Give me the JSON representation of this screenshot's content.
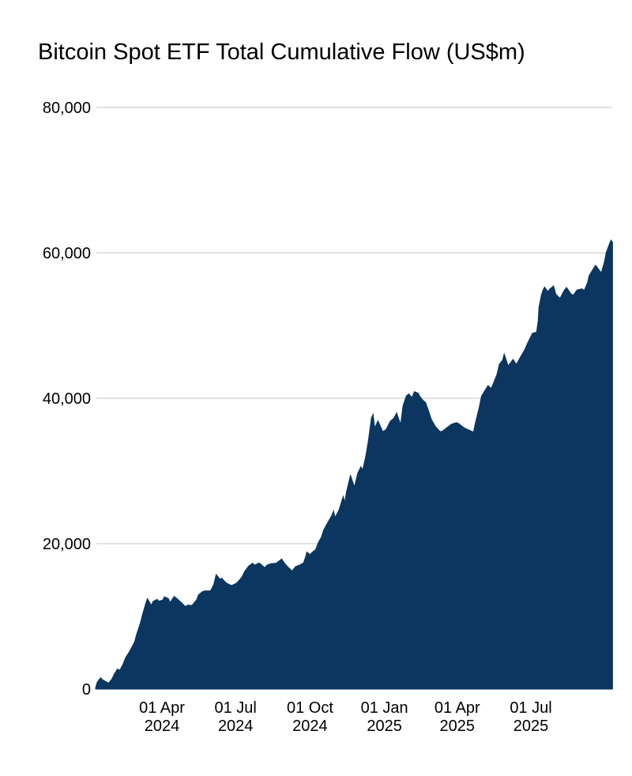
{
  "chart_data": {
    "type": "area",
    "title": "Bitcoin Spot ETF Total Cumulative Flow (US$m)",
    "xlabel": "",
    "ylabel": "",
    "ylim": [
      0,
      80000
    ],
    "grid": "horizontal-only",
    "legend": "none",
    "colors": {
      "fill": "#0a3660",
      "grid": "#d9d9d9",
      "text": "#000000",
      "background": "#ffffff"
    },
    "y_ticks": [
      {
        "value": 0,
        "label": "0"
      },
      {
        "value": 20000,
        "label": "20,000"
      },
      {
        "value": 40000,
        "label": "40,000"
      },
      {
        "value": 60000,
        "label": "60,000"
      },
      {
        "value": 80000,
        "label": "80,000"
      }
    ],
    "x_ticks": [
      {
        "date": "2024-04-01",
        "line1": "01 Apr",
        "line2": "2024"
      },
      {
        "date": "2024-07-01",
        "line1": "01 Jul",
        "line2": "2024"
      },
      {
        "date": "2024-10-01",
        "line1": "01 Oct",
        "line2": "2024"
      },
      {
        "date": "2025-01-01",
        "line1": "01 Jan",
        "line2": "2025"
      },
      {
        "date": "2025-04-01",
        "line1": "01 Apr",
        "line2": "2025"
      },
      {
        "date": "2025-07-01",
        "line1": "01 Jul",
        "line2": "2025"
      }
    ],
    "series": [
      {
        "name": "Total cumulative flow",
        "points": [
          [
            "2024-01-10",
            200
          ],
          [
            "2024-01-12",
            950
          ],
          [
            "2024-01-16",
            1550
          ],
          [
            "2024-01-19",
            1250
          ],
          [
            "2024-01-24",
            950
          ],
          [
            "2024-01-26",
            800
          ],
          [
            "2024-01-30",
            1350
          ],
          [
            "2024-02-02",
            2050
          ],
          [
            "2024-02-06",
            2750
          ],
          [
            "2024-02-09",
            2600
          ],
          [
            "2024-02-13",
            3450
          ],
          [
            "2024-02-16",
            4300
          ],
          [
            "2024-02-20",
            5000
          ],
          [
            "2024-02-23",
            5600
          ],
          [
            "2024-02-27",
            6450
          ],
          [
            "2024-03-01",
            7650
          ],
          [
            "2024-03-05",
            8950
          ],
          [
            "2024-03-08",
            10250
          ],
          [
            "2024-03-12",
            11800
          ],
          [
            "2024-03-14",
            12450
          ],
          [
            "2024-03-19",
            11500
          ],
          [
            "2024-03-21",
            12050
          ],
          [
            "2024-03-26",
            12350
          ],
          [
            "2024-03-28",
            12100
          ],
          [
            "2024-04-02",
            12250
          ],
          [
            "2024-04-04",
            12700
          ],
          [
            "2024-04-09",
            12450
          ],
          [
            "2024-04-11",
            11900
          ],
          [
            "2024-04-16",
            12750
          ],
          [
            "2024-04-19",
            12500
          ],
          [
            "2024-04-24",
            12000
          ],
          [
            "2024-04-30",
            11350
          ],
          [
            "2024-05-03",
            11550
          ],
          [
            "2024-05-08",
            11500
          ],
          [
            "2024-05-10",
            11750
          ],
          [
            "2024-05-14",
            12300
          ],
          [
            "2024-05-16",
            12950
          ],
          [
            "2024-05-21",
            13400
          ],
          [
            "2024-05-24",
            13500
          ],
          [
            "2024-05-31",
            13500
          ],
          [
            "2024-06-04",
            14350
          ],
          [
            "2024-06-07",
            15750
          ],
          [
            "2024-06-12",
            15100
          ],
          [
            "2024-06-14",
            15250
          ],
          [
            "2024-06-18",
            14750
          ],
          [
            "2024-06-21",
            14500
          ],
          [
            "2024-06-26",
            14250
          ],
          [
            "2024-07-02",
            14550
          ],
          [
            "2024-07-05",
            14900
          ],
          [
            "2024-07-09",
            15450
          ],
          [
            "2024-07-12",
            16150
          ],
          [
            "2024-07-17",
            16900
          ],
          [
            "2024-07-22",
            17300
          ],
          [
            "2024-07-25",
            17050
          ],
          [
            "2024-07-30",
            17350
          ],
          [
            "2024-08-02",
            17100
          ],
          [
            "2024-08-06",
            16700
          ],
          [
            "2024-08-09",
            17050
          ],
          [
            "2024-08-14",
            17250
          ],
          [
            "2024-08-20",
            17300
          ],
          [
            "2024-08-23",
            17550
          ],
          [
            "2024-08-27",
            17900
          ],
          [
            "2024-08-30",
            17400
          ],
          [
            "2024-09-04",
            16750
          ],
          [
            "2024-09-09",
            16250
          ],
          [
            "2024-09-13",
            16850
          ],
          [
            "2024-09-18",
            17050
          ],
          [
            "2024-09-23",
            17350
          ],
          [
            "2024-09-26",
            18350
          ],
          [
            "2024-09-27",
            18850
          ],
          [
            "2024-10-01",
            18500
          ],
          [
            "2024-10-04",
            18850
          ],
          [
            "2024-10-08",
            19200
          ],
          [
            "2024-10-11",
            20100
          ],
          [
            "2024-10-15",
            20900
          ],
          [
            "2024-10-18",
            21900
          ],
          [
            "2024-10-23",
            22900
          ],
          [
            "2024-10-28",
            23900
          ],
          [
            "2024-10-30",
            24500
          ],
          [
            "2024-11-01",
            23600
          ],
          [
            "2024-11-06",
            24700
          ],
          [
            "2024-11-11",
            26500
          ],
          [
            "2024-11-13",
            25700
          ],
          [
            "2024-11-15",
            27100
          ],
          [
            "2024-11-20",
            29400
          ],
          [
            "2024-11-25",
            27800
          ],
          [
            "2024-11-29",
            29700
          ],
          [
            "2024-12-03",
            30600
          ],
          [
            "2024-12-05",
            30100
          ],
          [
            "2024-12-09",
            32100
          ],
          [
            "2024-12-12",
            34100
          ],
          [
            "2024-12-16",
            37300
          ],
          [
            "2024-12-18",
            37800
          ],
          [
            "2024-12-20",
            35900
          ],
          [
            "2024-12-24",
            36900
          ],
          [
            "2024-12-30",
            35400
          ],
          [
            "2025-01-03",
            35700
          ],
          [
            "2025-01-08",
            36800
          ],
          [
            "2025-01-13",
            37300
          ],
          [
            "2025-01-16",
            38000
          ],
          [
            "2025-01-21",
            36400
          ],
          [
            "2025-01-24",
            39000
          ],
          [
            "2025-01-28",
            40300
          ],
          [
            "2025-01-31",
            40600
          ],
          [
            "2025-02-04",
            40100
          ],
          [
            "2025-02-07",
            40900
          ],
          [
            "2025-02-12",
            40700
          ],
          [
            "2025-02-14",
            40200
          ],
          [
            "2025-02-18",
            39700
          ],
          [
            "2025-02-21",
            39400
          ],
          [
            "2025-02-25",
            38100
          ],
          [
            "2025-02-28",
            37100
          ],
          [
            "2025-03-05",
            36100
          ],
          [
            "2025-03-11",
            35400
          ],
          [
            "2025-03-14",
            35500
          ],
          [
            "2025-03-19",
            35950
          ],
          [
            "2025-03-25",
            36450
          ],
          [
            "2025-03-31",
            36650
          ],
          [
            "2025-04-03",
            36500
          ],
          [
            "2025-04-08",
            36050
          ],
          [
            "2025-04-11",
            35850
          ],
          [
            "2025-04-16",
            35600
          ],
          [
            "2025-04-21",
            35350
          ],
          [
            "2025-04-24",
            36900
          ],
          [
            "2025-04-28",
            38700
          ],
          [
            "2025-05-01",
            40300
          ],
          [
            "2025-05-06",
            41200
          ],
          [
            "2025-05-09",
            41750
          ],
          [
            "2025-05-13",
            41350
          ],
          [
            "2025-05-16",
            42150
          ],
          [
            "2025-05-20",
            43250
          ],
          [
            "2025-05-23",
            44700
          ],
          [
            "2025-05-27",
            45250
          ],
          [
            "2025-05-29",
            46100
          ],
          [
            "2025-06-03",
            44450
          ],
          [
            "2025-06-09",
            45350
          ],
          [
            "2025-06-13",
            44650
          ],
          [
            "2025-06-18",
            45650
          ],
          [
            "2025-06-23",
            46600
          ],
          [
            "2025-06-27",
            47600
          ],
          [
            "2025-07-01",
            48500
          ],
          [
            "2025-07-03",
            48950
          ],
          [
            "2025-07-08",
            49100
          ],
          [
            "2025-07-10",
            50600
          ],
          [
            "2025-07-11",
            52500
          ],
          [
            "2025-07-14",
            54200
          ],
          [
            "2025-07-16",
            54900
          ],
          [
            "2025-07-18",
            55300
          ],
          [
            "2025-07-22",
            54650
          ],
          [
            "2025-07-24",
            55000
          ],
          [
            "2025-07-29",
            55450
          ],
          [
            "2025-08-01",
            54300
          ],
          [
            "2025-08-06",
            53750
          ],
          [
            "2025-08-11",
            54800
          ],
          [
            "2025-08-14",
            55250
          ],
          [
            "2025-08-19",
            54450
          ],
          [
            "2025-08-22",
            54150
          ],
          [
            "2025-08-27",
            54900
          ],
          [
            "2025-09-02",
            55050
          ],
          [
            "2025-09-05",
            54850
          ],
          [
            "2025-09-09",
            55900
          ],
          [
            "2025-09-11",
            56850
          ],
          [
            "2025-09-15",
            57600
          ],
          [
            "2025-09-19",
            58300
          ],
          [
            "2025-09-24",
            57550
          ],
          [
            "2025-09-26",
            57250
          ],
          [
            "2025-09-30",
            58800
          ],
          [
            "2025-10-02",
            60000
          ],
          [
            "2025-10-06",
            61200
          ],
          [
            "2025-10-08",
            61750
          ],
          [
            "2025-10-10",
            61450
          ]
        ]
      }
    ]
  }
}
